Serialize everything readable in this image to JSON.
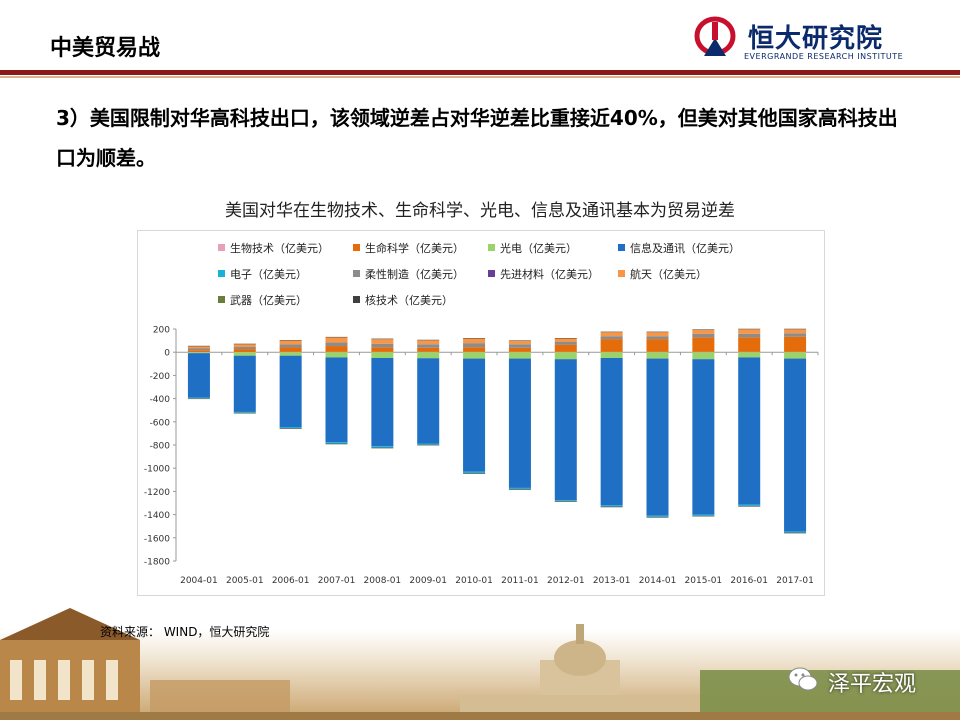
{
  "header": {
    "title": "中美贸易战",
    "logo_name": "恒大研究院",
    "logo_sub": "EVERGRANDE RESEARCH INSTITUTE"
  },
  "headline": "3）美国限制对华高科技出口，该领域逆差占对华逆差比重接近40%，但美对其他国家高科技出口为顺差。",
  "source_note": "资料来源：  WIND，恒大研究院",
  "watermark": "泽平宏观",
  "colors": {
    "header_rule": "#8b1a1a",
    "brand_navy": "#0a2a6b",
    "brand_red": "#c8102e"
  },
  "chart_data": {
    "type": "bar",
    "stacked": true,
    "title": "美国对华在生物技术、生命科学、光电、信息及通讯基本为贸易逆差",
    "categories": [
      "2004-01",
      "2005-01",
      "2006-01",
      "2007-01",
      "2008-01",
      "2009-01",
      "2010-01",
      "2011-01",
      "2012-01",
      "2013-01",
      "2014-01",
      "2015-01",
      "2016-01",
      "2017-01"
    ],
    "ylim": [
      -1800,
      200
    ],
    "yticks": [
      200,
      0,
      -200,
      -400,
      -600,
      -800,
      -1000,
      -1200,
      -1400,
      -1600,
      -1800
    ],
    "legend_position": "top",
    "series": [
      {
        "name": "生物技术（亿美元）",
        "color": "#e8a0b8",
        "values": [
          2,
          2,
          3,
          3,
          3,
          3,
          3,
          3,
          3,
          3,
          3,
          3,
          3,
          3
        ]
      },
      {
        "name": "生命科学（亿美元）",
        "color": "#e46c0a",
        "values": [
          15,
          25,
          38,
          50,
          40,
          35,
          40,
          35,
          60,
          110,
          110,
          125,
          125,
          130
        ]
      },
      {
        "name": "光电（亿美元）",
        "color": "#9bd36b",
        "values": [
          -8,
          -30,
          -30,
          -45,
          -50,
          -52,
          -55,
          -55,
          -60,
          -50,
          -55,
          -60,
          -45,
          -55
        ]
      },
      {
        "name": "信息及通讯（亿美元）",
        "color": "#1f6fc5",
        "values": [
          -385,
          -485,
          -615,
          -730,
          -760,
          -735,
          -975,
          -1115,
          -1215,
          -1270,
          -1355,
          -1340,
          -1270,
          -1490
        ]
      },
      {
        "name": "电子（亿美元）",
        "color": "#17b3d4",
        "values": [
          -5,
          -8,
          -10,
          -12,
          -12,
          -10,
          -12,
          -10,
          -8,
          -10,
          -10,
          -10,
          -10,
          -10
        ]
      },
      {
        "name": "柔性制造（亿美元）",
        "color": "#8c8c8c",
        "values": [
          15,
          18,
          25,
          30,
          30,
          30,
          35,
          30,
          25,
          25,
          25,
          30,
          30,
          30
        ]
      },
      {
        "name": "先进材料（亿美元）",
        "color": "#6a3d9a",
        "values": [
          -2,
          -2,
          -3,
          -3,
          -3,
          -3,
          -3,
          -3,
          -3,
          -3,
          -3,
          -3,
          -3,
          -3
        ]
      },
      {
        "name": "航天（亿美元）",
        "color": "#f79646",
        "values": [
          20,
          25,
          35,
          45,
          40,
          35,
          40,
          30,
          30,
          35,
          35,
          35,
          40,
          35
        ]
      },
      {
        "name": "武器（亿美元）",
        "color": "#6b7d3a",
        "values": [
          -1,
          -1,
          -2,
          -2,
          -2,
          -2,
          -2,
          -2,
          -2,
          -2,
          -2,
          -2,
          -2,
          -2
        ]
      },
      {
        "name": "核技术（亿美元）",
        "color": "#404040",
        "values": [
          3,
          3,
          3,
          4,
          4,
          4,
          4,
          4,
          4,
          4,
          4,
          4,
          4,
          4
        ]
      }
    ]
  }
}
